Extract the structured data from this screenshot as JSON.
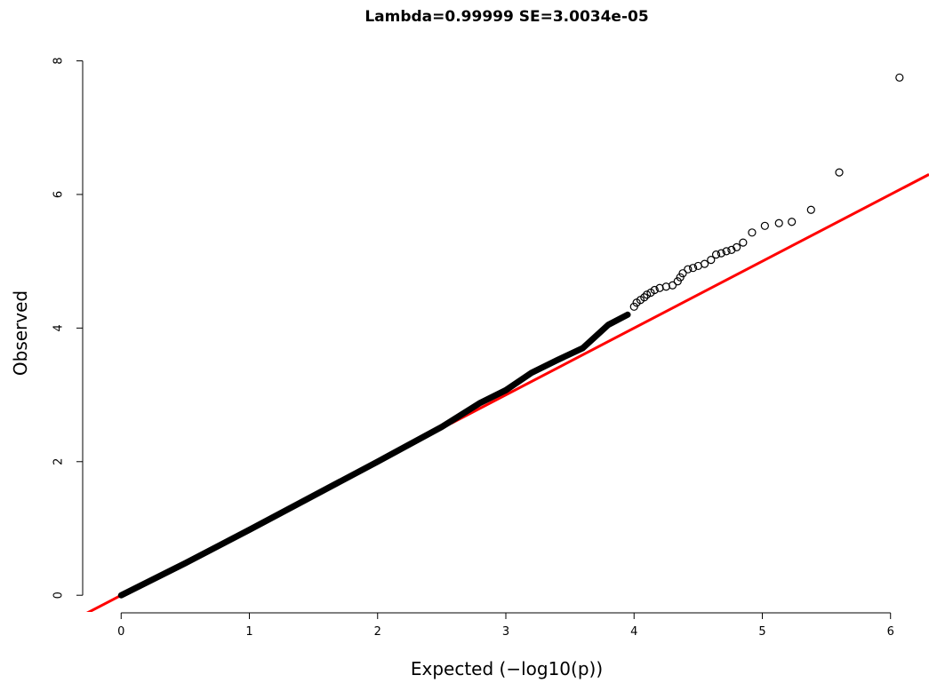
{
  "chart_data": {
    "type": "scatter",
    "title": "Lambda=0.99999 SE=3.0034e-05",
    "xlabel": "Expected (−log10(p))",
    "ylabel": "Observed",
    "xlim": [
      -0.3,
      6.3
    ],
    "ylim": [
      -0.25,
      8.1
    ],
    "x_ticks": [
      "0",
      "1",
      "2",
      "3",
      "4",
      "5",
      "6"
    ],
    "y_ticks": [
      "0",
      "2",
      "4",
      "6",
      "8"
    ],
    "grid": false,
    "legend": "none",
    "point_color": "#000000",
    "reference_line": {
      "slope": 1,
      "intercept": 0,
      "color": "#ff0000"
    },
    "dense_segments": [
      [
        0.0,
        0.0
      ],
      [
        0.5,
        0.48
      ],
      [
        1.0,
        0.98
      ],
      [
        1.5,
        1.49
      ],
      [
        2.0,
        2.0
      ],
      [
        2.5,
        2.52
      ],
      [
        2.8,
        2.88
      ],
      [
        3.0,
        3.07
      ],
      [
        3.2,
        3.33
      ],
      [
        3.4,
        3.52
      ],
      [
        3.6,
        3.7
      ],
      [
        3.8,
        4.05
      ],
      [
        3.95,
        4.2
      ]
    ],
    "points": [
      [
        4.0,
        4.32
      ],
      [
        4.02,
        4.38
      ],
      [
        4.05,
        4.42
      ],
      [
        4.08,
        4.46
      ],
      [
        4.1,
        4.5
      ],
      [
        4.13,
        4.53
      ],
      [
        4.16,
        4.57
      ],
      [
        4.2,
        4.6
      ],
      [
        4.25,
        4.62
      ],
      [
        4.3,
        4.64
      ],
      [
        4.34,
        4.7
      ],
      [
        4.36,
        4.76
      ],
      [
        4.38,
        4.82
      ],
      [
        4.42,
        4.88
      ],
      [
        4.46,
        4.9
      ],
      [
        4.5,
        4.93
      ],
      [
        4.55,
        4.96
      ],
      [
        4.6,
        5.02
      ],
      [
        4.64,
        5.1
      ],
      [
        4.68,
        5.12
      ],
      [
        4.72,
        5.15
      ],
      [
        4.76,
        5.17
      ],
      [
        4.8,
        5.21
      ],
      [
        4.85,
        5.28
      ],
      [
        4.92,
        5.43
      ],
      [
        5.02,
        5.53
      ],
      [
        5.13,
        5.57
      ],
      [
        5.23,
        5.59
      ],
      [
        5.38,
        5.77
      ],
      [
        5.6,
        6.33
      ],
      [
        6.07,
        7.75
      ]
    ]
  }
}
